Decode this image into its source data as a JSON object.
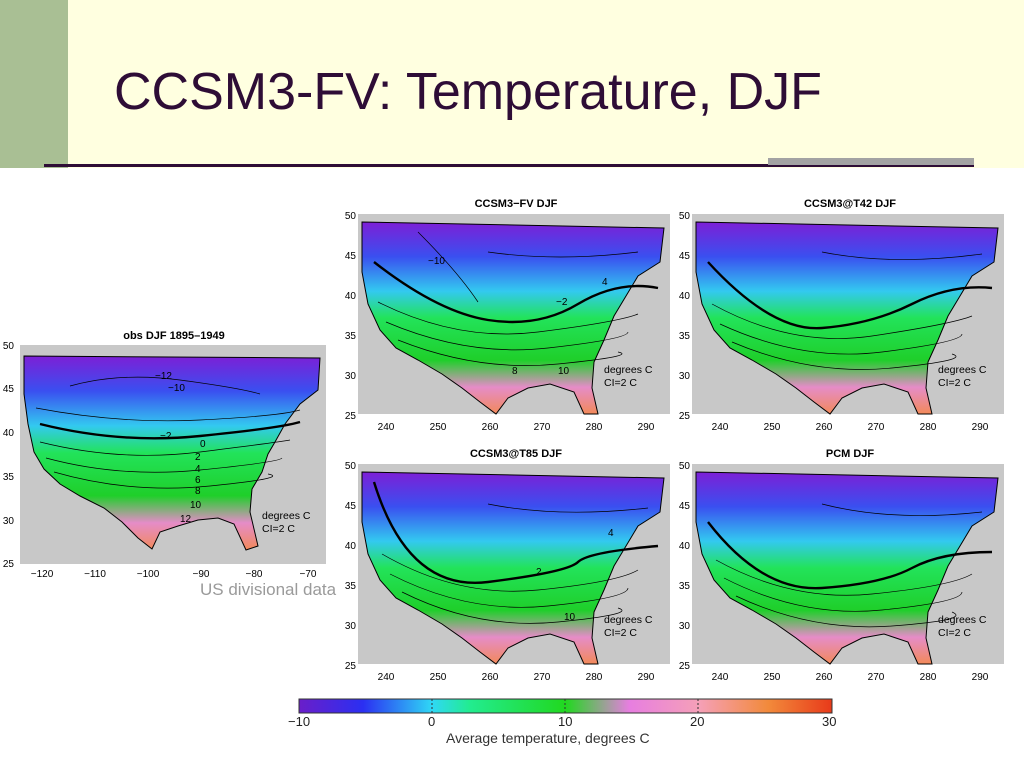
{
  "slide": {
    "title": "CCSM3-FV: Temperature, DJF"
  },
  "panels": [
    {
      "id": "obs",
      "title": "obs DJF 1895–1949",
      "ylabels": [
        "50",
        "45",
        "40",
        "35",
        "30",
        "25"
      ],
      "xlabels": [
        "−120",
        "−110",
        "−100",
        "−90",
        "−80",
        "−70"
      ],
      "note1": "degrees C",
      "note2": "CI=2 C",
      "contour_labels": [
        "−12",
        "−10",
        "−2",
        "0",
        "2",
        "4",
        "6",
        "8",
        "10",
        "12"
      ]
    },
    {
      "id": "fv",
      "title": "CCSM3−FV DJF",
      "ylabels": [
        "50",
        "45",
        "40",
        "35",
        "30",
        "25"
      ],
      "xlabels": [
        "240",
        "250",
        "260",
        "270",
        "280",
        "290"
      ],
      "note1": "degrees C",
      "note2": "CI=2 C",
      "contour_labels": [
        "−10",
        "−2",
        "4",
        "8",
        "10"
      ]
    },
    {
      "id": "t42",
      "title": "CCSM3@T42 DJF",
      "ylabels": [
        "50",
        "45",
        "40",
        "35",
        "30",
        "25"
      ],
      "xlabels": [
        "240",
        "250",
        "260",
        "270",
        "280",
        "290"
      ],
      "note1": "degrees C",
      "note2": "CI=2 C"
    },
    {
      "id": "t85",
      "title": "CCSM3@T85 DJF",
      "ylabels": [
        "50",
        "45",
        "40",
        "35",
        "30",
        "25"
      ],
      "xlabels": [
        "240",
        "250",
        "260",
        "270",
        "280",
        "290"
      ],
      "note1": "degrees C",
      "note2": "CI=2 C",
      "contour_labels": [
        "4",
        "2",
        "10"
      ]
    },
    {
      "id": "pcm",
      "title": "PCM DJF",
      "ylabels": [
        "50",
        "45",
        "40",
        "35",
        "30",
        "25"
      ],
      "xlabels": [
        "240",
        "250",
        "260",
        "270",
        "280",
        "290"
      ],
      "note1": "degrees C",
      "note2": "CI=2 C"
    }
  ],
  "caption": "US divisional data",
  "colorbar": {
    "title": "Average temperature, degrees C",
    "ticks": [
      "−10",
      "0",
      "10",
      "20",
      "30"
    ],
    "min": -10,
    "max": 30
  }
}
